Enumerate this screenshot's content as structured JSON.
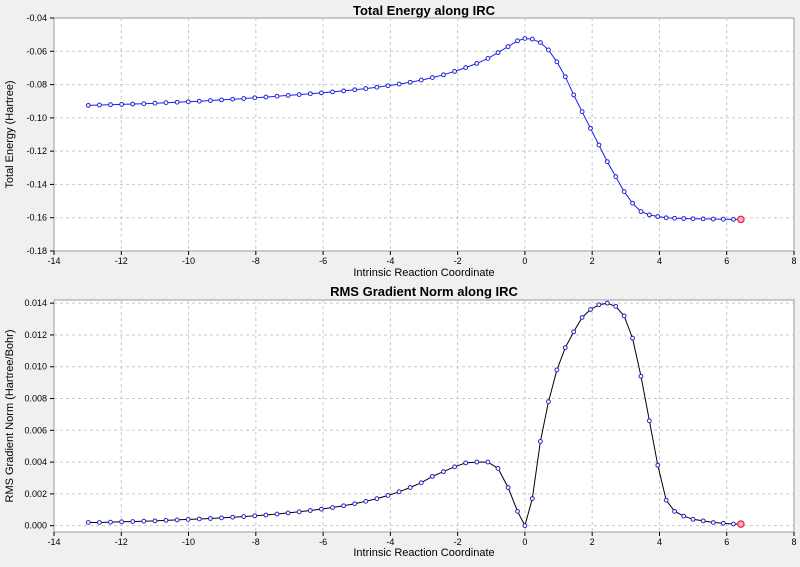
{
  "chart_data": [
    {
      "type": "line",
      "title": "Total Energy along IRC",
      "xlabel": "Intrinsic Reaction Coordinate",
      "ylabel": "Total Energy (Hartree)",
      "xlim": [
        -14,
        8
      ],
      "ylim": [
        -0.18,
        -0.04
      ],
      "xticks": [
        -14,
        -12,
        -10,
        -8,
        -6,
        -4,
        -2,
        0,
        2,
        4,
        6,
        8
      ],
      "yticks": [
        -0.18,
        -0.16,
        -0.14,
        -0.12,
        -0.1,
        -0.08,
        -0.06,
        -0.04
      ],
      "xtick_labels": [
        "-14",
        "-12",
        "-10",
        "-8",
        "-6",
        "-4",
        "-2",
        "0",
        "2",
        "4",
        "6",
        "8"
      ],
      "ytick_labels": [
        "-0.18",
        "-0.16",
        "-0.14",
        "-0.12",
        "-0.10",
        "-0.08",
        "-0.06",
        "-0.04"
      ],
      "grid": true,
      "line_color": "#1a1aff",
      "marker_color": "#2222cc",
      "highlight_color": "#dd2244",
      "x": [
        -12.98,
        -12.65,
        -12.32,
        -11.99,
        -11.66,
        -11.33,
        -11.0,
        -10.67,
        -10.34,
        -10.01,
        -9.68,
        -9.35,
        -9.02,
        -8.69,
        -8.36,
        -8.03,
        -7.7,
        -7.37,
        -7.04,
        -6.71,
        -6.38,
        -6.05,
        -5.72,
        -5.39,
        -5.06,
        -4.73,
        -4.4,
        -4.07,
        -3.74,
        -3.41,
        -3.08,
        -2.75,
        -2.42,
        -2.09,
        -1.76,
        -1.43,
        -1.1,
        -0.8,
        -0.5,
        -0.22,
        0.0,
        0.22,
        0.46,
        0.7,
        0.95,
        1.2,
        1.45,
        1.7,
        1.95,
        2.2,
        2.45,
        2.7,
        2.95,
        3.2,
        3.45,
        3.7,
        3.95,
        4.2,
        4.45,
        4.72,
        5.0,
        5.3,
        5.6,
        5.9,
        6.2,
        6.42
      ],
      "y": [
        -0.0925,
        -0.0923,
        -0.0921,
        -0.0919,
        -0.0917,
        -0.0915,
        -0.0912,
        -0.0909,
        -0.0906,
        -0.0903,
        -0.09,
        -0.0896,
        -0.0892,
        -0.0888,
        -0.0884,
        -0.0879,
        -0.0875,
        -0.087,
        -0.0865,
        -0.086,
        -0.0855,
        -0.085,
        -0.0844,
        -0.0838,
        -0.0831,
        -0.0824,
        -0.0816,
        -0.0807,
        -0.0797,
        -0.0786,
        -0.0773,
        -0.0758,
        -0.0741,
        -0.0721,
        -0.0698,
        -0.0673,
        -0.0643,
        -0.0608,
        -0.0572,
        -0.0537,
        -0.0523,
        -0.0527,
        -0.0547,
        -0.0592,
        -0.0663,
        -0.0753,
        -0.0862,
        -0.0963,
        -0.1063,
        -0.1163,
        -0.1263,
        -0.1353,
        -0.1443,
        -0.1513,
        -0.1563,
        -0.1583,
        -0.1593,
        -0.16,
        -0.1603,
        -0.1605,
        -0.1606,
        -0.1607,
        -0.1608,
        -0.1609,
        -0.161,
        -0.161
      ]
    },
    {
      "type": "line",
      "title": "RMS Gradient Norm along IRC",
      "xlabel": "Intrinsic Reaction Coordinate",
      "ylabel": "RMS Gradient Norm (Hartree/Bohr)",
      "xlim": [
        -14,
        8
      ],
      "ylim": [
        -0.0004,
        0.0142
      ],
      "xticks": [
        -14,
        -12,
        -10,
        -8,
        -6,
        -4,
        -2,
        0,
        2,
        4,
        6,
        8
      ],
      "yticks": [
        0.0,
        0.002,
        0.004,
        0.006,
        0.008,
        0.01,
        0.012,
        0.014
      ],
      "xtick_labels": [
        "-14",
        "-12",
        "-10",
        "-8",
        "-6",
        "-4",
        "-2",
        "0",
        "2",
        "4",
        "6",
        "8"
      ],
      "ytick_labels": [
        "0.000",
        "0.002",
        "0.004",
        "0.006",
        "0.008",
        "0.010",
        "0.012",
        "0.014"
      ],
      "grid": true,
      "line_color": "#000000",
      "marker_color": "#2222cc",
      "highlight_color": "#dd2244",
      "x": [
        -12.98,
        -12.65,
        -12.32,
        -11.99,
        -11.66,
        -11.33,
        -11.0,
        -10.67,
        -10.34,
        -10.01,
        -9.68,
        -9.35,
        -9.02,
        -8.69,
        -8.36,
        -8.03,
        -7.7,
        -7.37,
        -7.04,
        -6.71,
        -6.38,
        -6.05,
        -5.72,
        -5.39,
        -5.06,
        -4.73,
        -4.4,
        -4.07,
        -3.74,
        -3.41,
        -3.08,
        -2.75,
        -2.42,
        -2.09,
        -1.76,
        -1.43,
        -1.1,
        -0.8,
        -0.5,
        -0.22,
        0.0,
        0.22,
        0.46,
        0.7,
        0.95,
        1.2,
        1.45,
        1.7,
        1.95,
        2.2,
        2.45,
        2.7,
        2.95,
        3.2,
        3.45,
        3.7,
        3.95,
        4.2,
        4.45,
        4.72,
        5.0,
        5.3,
        5.6,
        5.9,
        6.2,
        6.42
      ],
      "y": [
        0.0002,
        0.0002,
        0.00022,
        0.00024,
        0.00026,
        0.00028,
        0.0003,
        0.00033,
        0.00036,
        0.00039,
        0.00042,
        0.00045,
        0.00049,
        0.00053,
        0.00057,
        0.00062,
        0.00067,
        0.00073,
        0.0008,
        0.00087,
        0.00095,
        0.00104,
        0.00114,
        0.00125,
        0.00138,
        0.00153,
        0.0017,
        0.0019,
        0.00213,
        0.0024,
        0.0027,
        0.0031,
        0.0034,
        0.0037,
        0.00395,
        0.004,
        0.004,
        0.0036,
        0.0024,
        0.0009,
        0.0,
        0.0017,
        0.0053,
        0.0078,
        0.0098,
        0.0112,
        0.0122,
        0.0131,
        0.0136,
        0.0139,
        0.014,
        0.0138,
        0.0132,
        0.0118,
        0.0094,
        0.0066,
        0.0038,
        0.0016,
        0.0009,
        0.0006,
        0.0004,
        0.0003,
        0.0002,
        0.00015,
        0.0001,
        0.0001
      ]
    }
  ]
}
